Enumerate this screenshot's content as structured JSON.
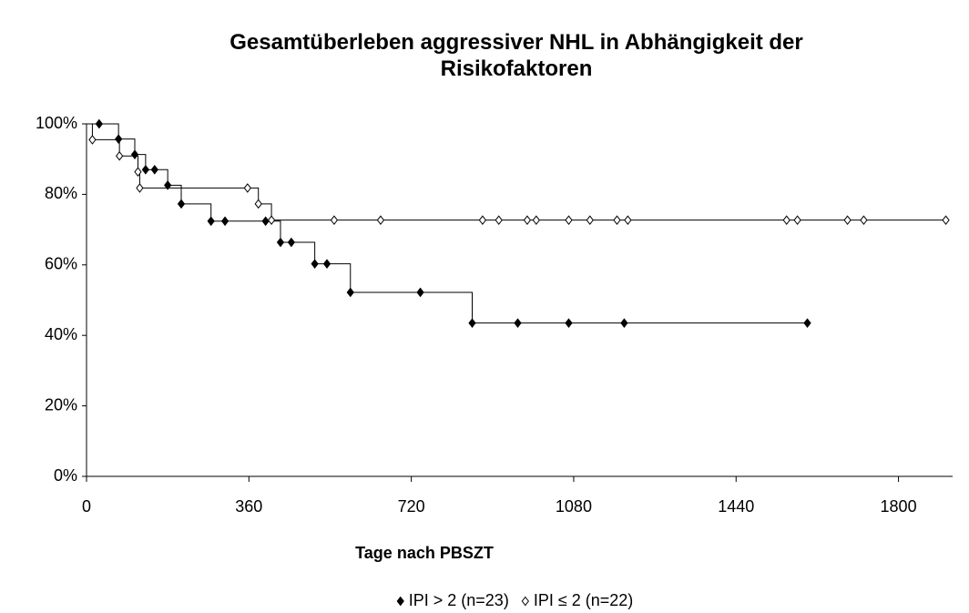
{
  "chart_data": {
    "type": "step",
    "title": "Gesamtüberleben aggressiver NHL in Abhängigkeit der Risikofaktoren",
    "x_label": "Tage nach PBSZT",
    "xlim": [
      0,
      1920
    ],
    "xticks": [
      0,
      360,
      720,
      1080,
      1440,
      1800
    ],
    "ylim": [
      0,
      100
    ],
    "yticks": [
      {
        "value": 0,
        "label": "0%"
      },
      {
        "value": 20,
        "label": "20%"
      },
      {
        "value": 40,
        "label": "40%"
      },
      {
        "value": 60,
        "label": "60%"
      },
      {
        "value": 80,
        "label": "80%"
      },
      {
        "value": 100,
        "label": "100%"
      }
    ],
    "legend": "bottom",
    "series": [
      {
        "name": "IPI > 2 (n=23)",
        "color": "#000000",
        "marker": "filled",
        "x": [
          0,
          28,
          71,
          107,
          131,
          151,
          180,
          210,
          276,
          307,
          397,
          430,
          454,
          506,
          533,
          585,
          740,
          855,
          956,
          1069,
          1192,
          1598
        ],
        "values": [
          100,
          100,
          95.7,
          91.3,
          87,
          87,
          82.6,
          77.3,
          72.4,
          72.4,
          72.4,
          66.4,
          66.4,
          60.3,
          60.3,
          52.2,
          52.2,
          43.5,
          43.5,
          43.5,
          43.5,
          43.5
        ]
      },
      {
        "name": "IPI ≤ 2 (n=22)",
        "color": "#000000",
        "marker": "open",
        "x": [
          0,
          13,
          73,
          114,
          118,
          357,
          381,
          410,
          549,
          652,
          878,
          914,
          977,
          997,
          1069,
          1116,
          1176,
          1200,
          1552,
          1576,
          1687,
          1723,
          1905
        ],
        "values": [
          100,
          95.5,
          90.9,
          86.4,
          81.8,
          81.8,
          77.3,
          72.7,
          72.7,
          72.7,
          72.7,
          72.7,
          72.7,
          72.7,
          72.7,
          72.7,
          72.7,
          72.7,
          72.7,
          72.7,
          72.7,
          72.7,
          72.7
        ]
      }
    ]
  }
}
